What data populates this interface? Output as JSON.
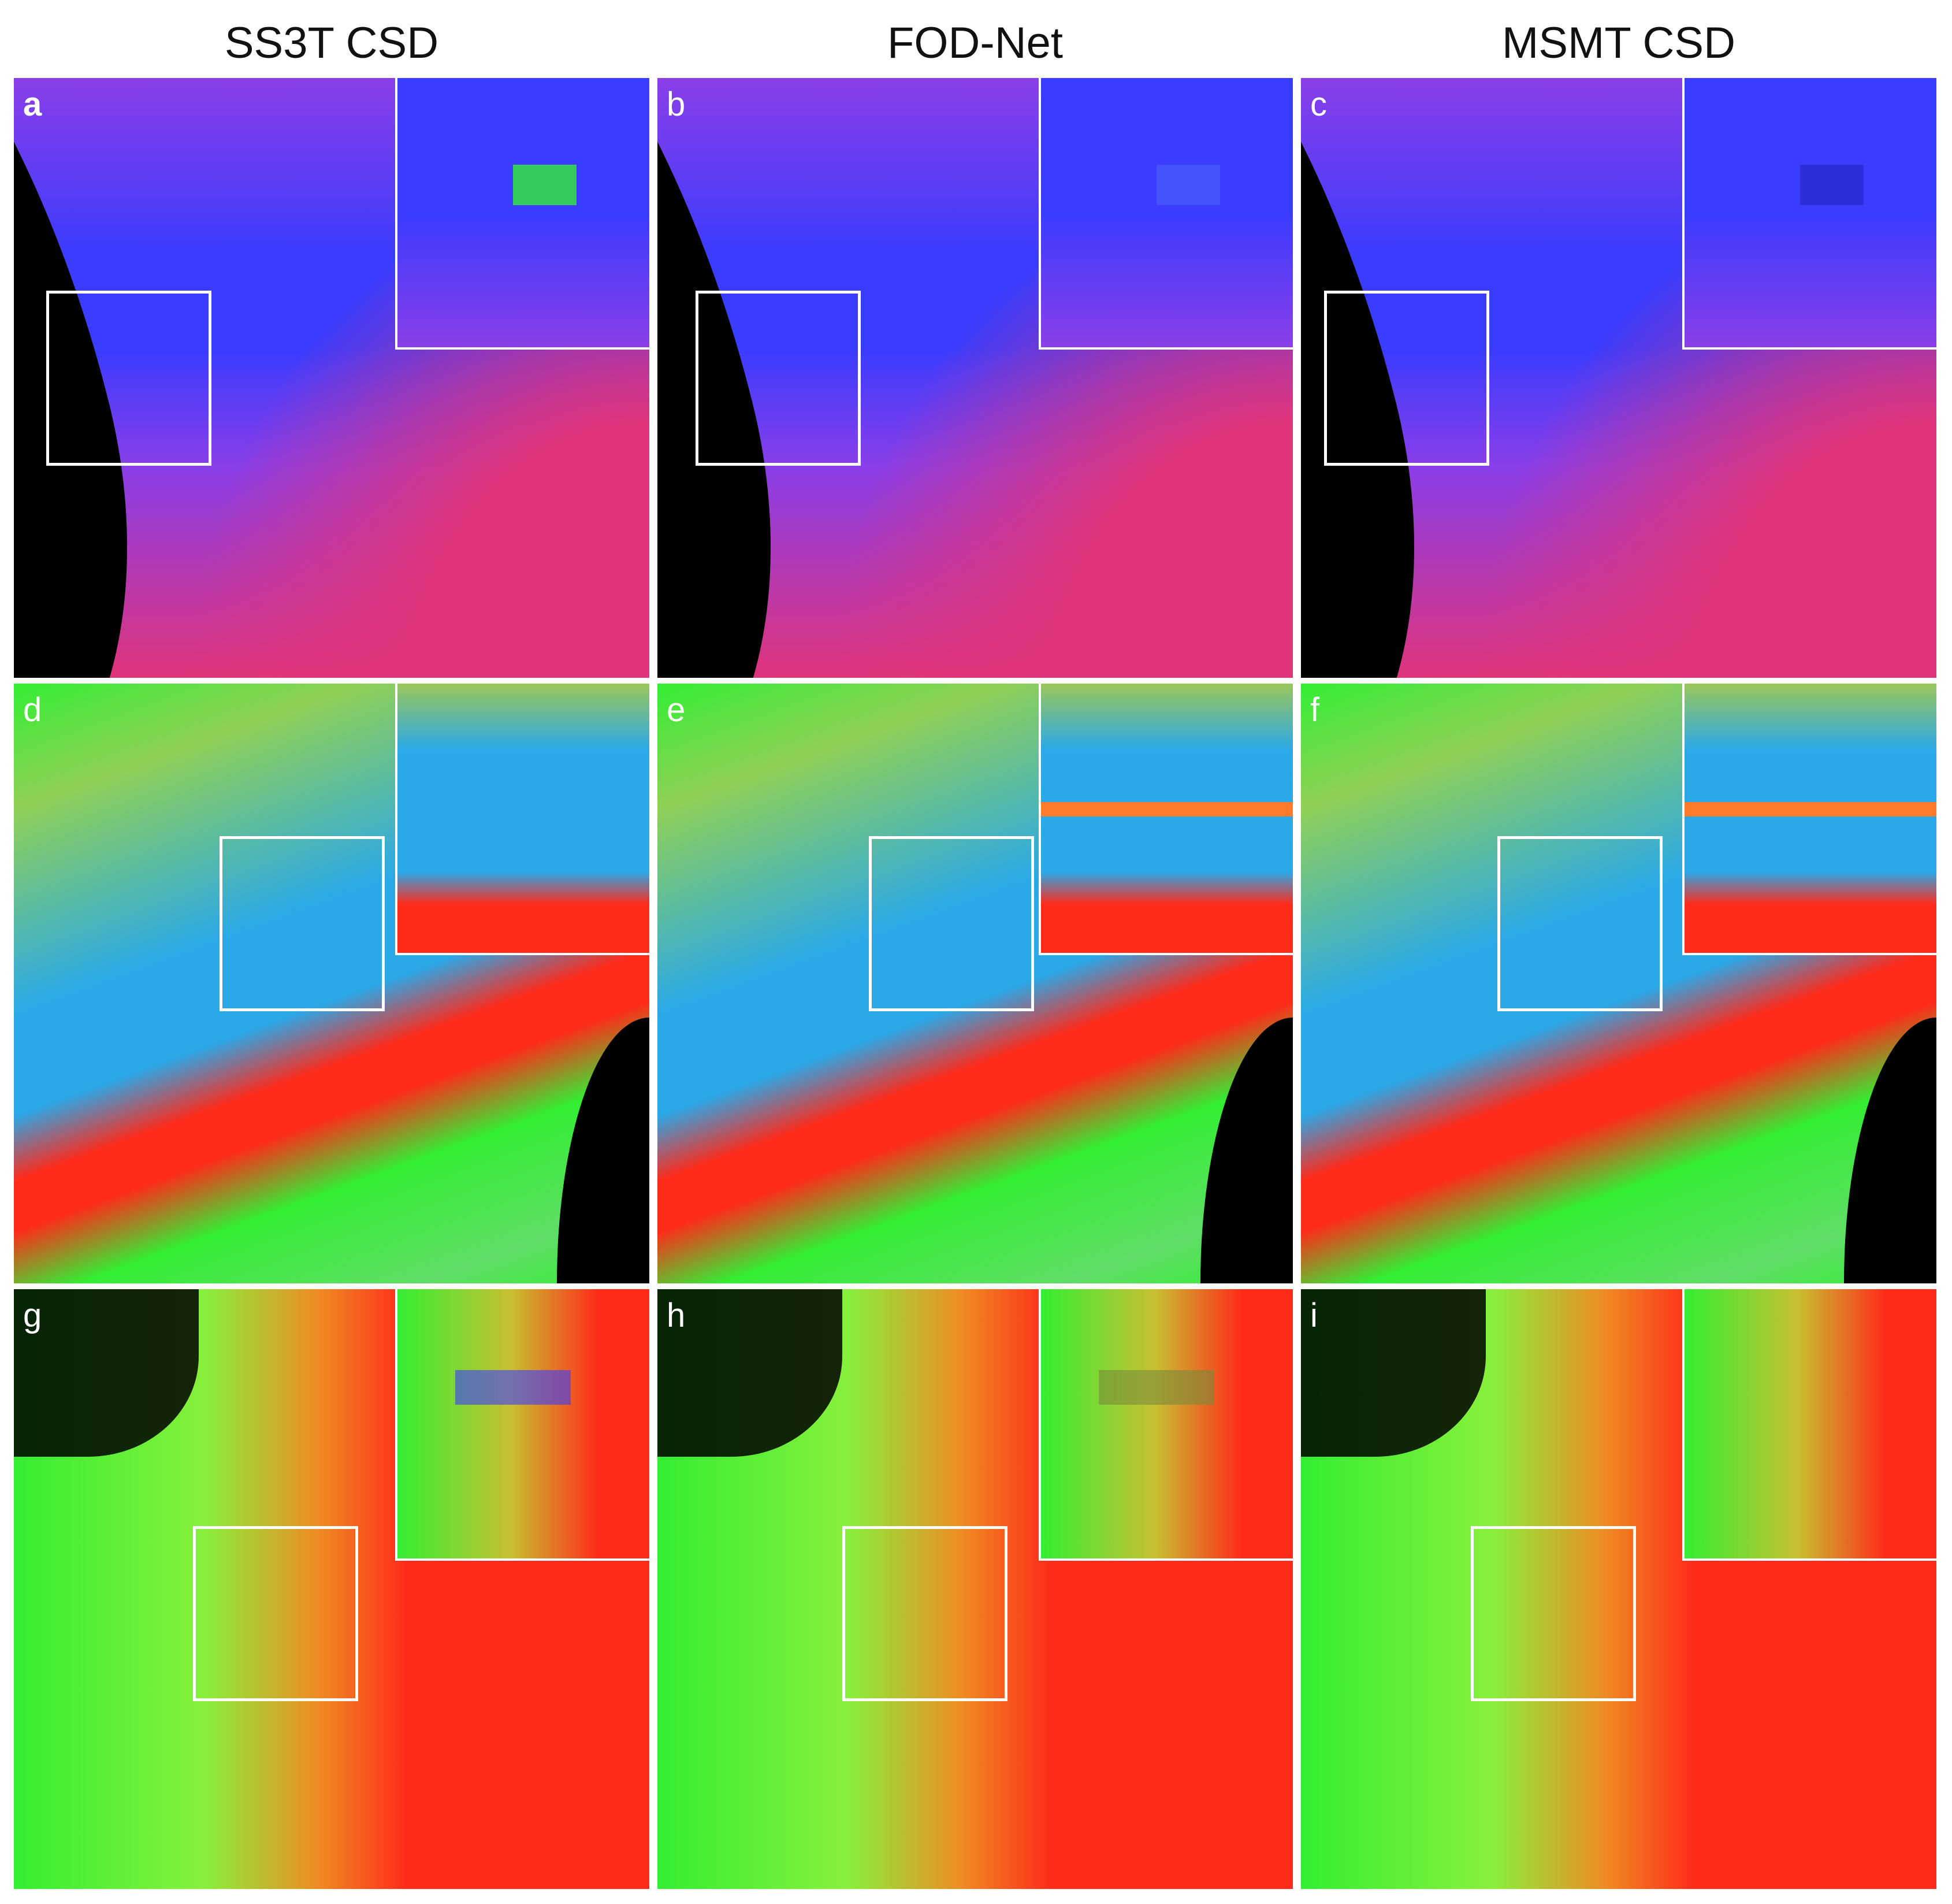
{
  "columns": [
    "SS3T CSD",
    "FOD-Net",
    "MSMT CSD"
  ],
  "panels": [
    {
      "letter": "a",
      "row": 0,
      "col": 0,
      "scene": "purple",
      "artifact": "green"
    },
    {
      "letter": "b",
      "row": 0,
      "col": 1,
      "scene": "purple",
      "artifact": "faint"
    },
    {
      "letter": "c",
      "row": 0,
      "col": 2,
      "scene": "purple",
      "artifact": "dark"
    },
    {
      "letter": "d",
      "row": 1,
      "col": 0,
      "scene": "mixed",
      "artifact": "none"
    },
    {
      "letter": "e",
      "row": 1,
      "col": 1,
      "scene": "mixed",
      "artifact": "orange"
    },
    {
      "letter": "f",
      "row": 1,
      "col": 2,
      "scene": "mixed",
      "artifact": "orange"
    },
    {
      "letter": "g",
      "row": 2,
      "col": 0,
      "scene": "warm",
      "artifact": "blue"
    },
    {
      "letter": "h",
      "row": 2,
      "col": 1,
      "scene": "warm",
      "artifact": "light"
    },
    {
      "letter": "i",
      "row": 2,
      "col": 2,
      "scene": "warm",
      "artifact": "none"
    }
  ],
  "colors": {
    "blue": "#3a3cff",
    "purple": "#8a3ee8",
    "magenta": "#e0347a",
    "red": "#ff2a1a",
    "green": "#33ee33",
    "cyan": "#2aa8e8",
    "frame": "#ffffff"
  }
}
